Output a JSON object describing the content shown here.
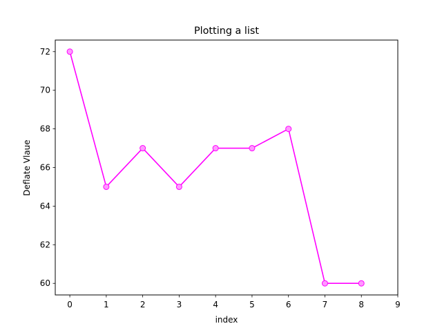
{
  "chart_data": {
    "type": "line",
    "title": "Plotting a list",
    "xlabel": "index",
    "ylabel": "Deflate Vlaue",
    "x": [
      0,
      1,
      2,
      3,
      4,
      5,
      6,
      7,
      8
    ],
    "series": [
      {
        "values": [
          72,
          65,
          67,
          65,
          67,
          67,
          68,
          60,
          60
        ],
        "color": "#ff00ff",
        "marker": "circle",
        "marker_face_color": "#ff99ff"
      }
    ],
    "xlim": [
      -0.4,
      9
    ],
    "ylim": [
      59.4,
      72.6
    ],
    "xticks": [
      "0",
      "1",
      "2",
      "3",
      "4",
      "5",
      "6",
      "7",
      "8",
      "9"
    ],
    "yticks": [
      "60",
      "62",
      "64",
      "66",
      "68",
      "70",
      "72"
    ],
    "grid": false,
    "legend": false
  }
}
